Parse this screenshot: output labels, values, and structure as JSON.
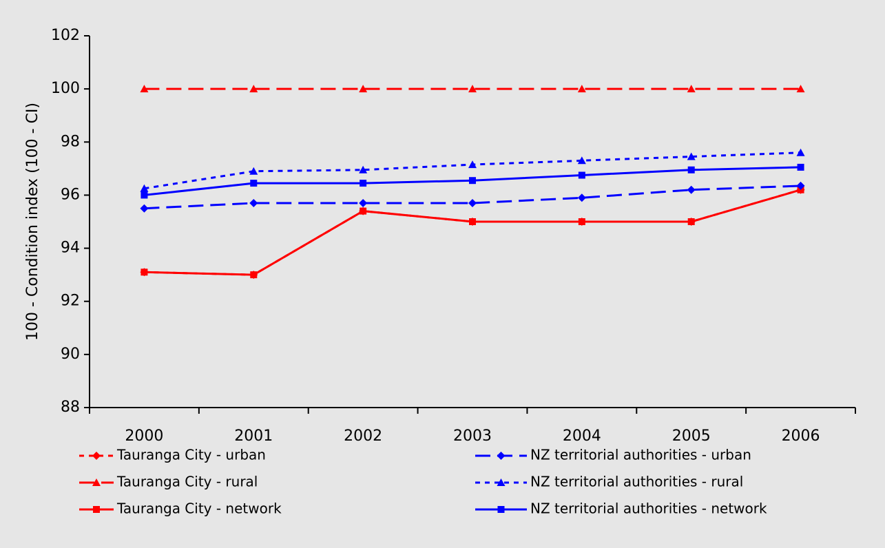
{
  "chart_data": {
    "type": "line",
    "y_label": "100 - Condition index (100 - CI)",
    "categories": [
      "2000",
      "2001",
      "2002",
      "2003",
      "2004",
      "2005",
      "2006"
    ],
    "ylim": [
      88,
      102
    ],
    "yticks": [
      88,
      90,
      92,
      94,
      96,
      98,
      100,
      102
    ],
    "series": [
      {
        "name": "Tauranga City - urban",
        "color": "#ff0000",
        "dash": "short",
        "marker": "diamond",
        "values": [
          93.1,
          93.0,
          95.4,
          95.0,
          95.0,
          95.0,
          96.2
        ]
      },
      {
        "name": "Tauranga City - rural",
        "color": "#ff0000",
        "dash": "long",
        "marker": "triangle",
        "values": [
          100,
          100,
          100,
          100,
          100,
          100,
          100
        ]
      },
      {
        "name": "Tauranga City - network",
        "color": "#ff0000",
        "dash": "solid",
        "marker": "square",
        "values": [
          93.1,
          93.0,
          95.4,
          95.0,
          95.0,
          95.0,
          96.2
        ]
      },
      {
        "name": "NZ territorial authorities - urban",
        "color": "#0000ff",
        "dash": "long",
        "marker": "diamond",
        "values": [
          95.5,
          95.7,
          95.7,
          95.7,
          95.9,
          96.2,
          96.35
        ]
      },
      {
        "name": "NZ territorial authorities - rural",
        "color": "#0000ff",
        "dash": "short",
        "marker": "triangle",
        "values": [
          96.25,
          96.9,
          96.95,
          97.15,
          97.3,
          97.45,
          97.6
        ]
      },
      {
        "name": "NZ territorial authorities - network",
        "color": "#0000ff",
        "dash": "solid",
        "marker": "square",
        "values": [
          96.0,
          96.45,
          96.45,
          96.55,
          96.75,
          96.95,
          97.05
        ]
      }
    ]
  }
}
